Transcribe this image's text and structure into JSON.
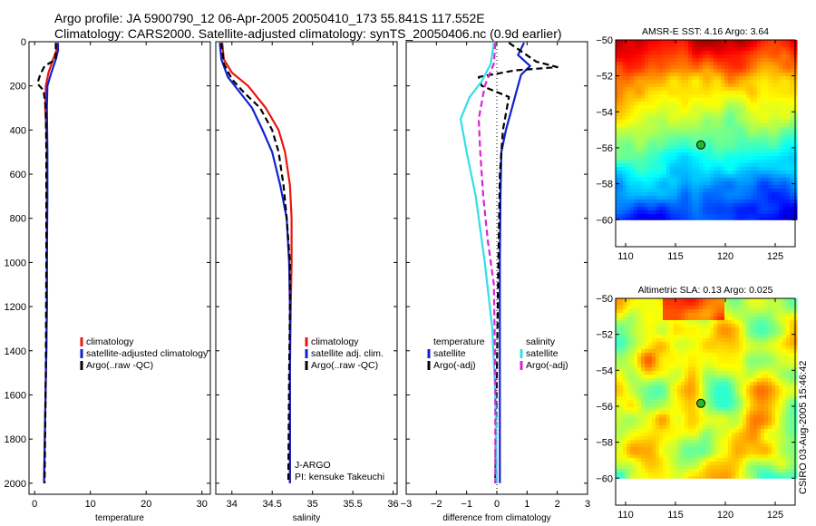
{
  "header": {
    "line1": "Argo profile: JA 5900790_12 06-Apr-2005 20050410_173 55.841S 117.552E",
    "line2": "Climatology: CARS2000. Satellite-adjusted climatology: synTS_20050406.nc (0.9d earlier)"
  },
  "credit": "CSIRO 03-Aug-2005 15:46:42",
  "colors": {
    "red": "#e8180f",
    "blue": "#1020d0",
    "black": "#000000",
    "cyan": "#30e0e8",
    "magenta": "#e020d8"
  },
  "chart_data": [
    {
      "type": "line",
      "id": "temp",
      "xlabel": "temperature",
      "xlim": [
        -1,
        31.5
      ],
      "ylim": [
        0,
        2050
      ],
      "xticks": [
        0,
        10,
        20,
        30
      ],
      "yticks": [
        0,
        200,
        400,
        600,
        800,
        1000,
        1200,
        1400,
        1600,
        1800,
        2000
      ],
      "y_inverted": true,
      "series": [
        {
          "name": "climatology",
          "color": "#e8180f",
          "dash": false,
          "points": [
            [
              3.9,
              5
            ],
            [
              3.9,
              40
            ],
            [
              3.3,
              80
            ],
            [
              2.5,
              140
            ],
            [
              2.0,
              200
            ],
            [
              1.9,
              300
            ],
            [
              2.1,
              400
            ],
            [
              2.2,
              500
            ],
            [
              2.2,
              700
            ],
            [
              2.2,
              1000
            ],
            [
              2.2,
              1200
            ],
            [
              2.1,
              1400
            ],
            [
              1.9,
              1700
            ],
            [
              1.7,
              2000
            ]
          ]
        },
        {
          "name": "satellite-adjusted climatology",
          "color": "#1020d0",
          "dash": false,
          "points": [
            [
              4.2,
              5
            ],
            [
              4.2,
              40
            ],
            [
              3.8,
              80
            ],
            [
              3.0,
              140
            ],
            [
              2.3,
              200
            ],
            [
              2.2,
              300
            ],
            [
              2.3,
              500
            ],
            [
              2.3,
              700
            ],
            [
              2.2,
              1000
            ],
            [
              2.2,
              1200
            ],
            [
              2.1,
              1400
            ],
            [
              1.9,
              1700
            ],
            [
              1.7,
              2000
            ]
          ]
        },
        {
          "name": "Argo(..raw -QC)",
          "color": "#000000",
          "dash": true,
          "points": [
            [
              3.8,
              5
            ],
            [
              3.8,
              80
            ],
            [
              1.8,
              110
            ],
            [
              1.0,
              150
            ],
            [
              0.5,
              190
            ],
            [
              1.6,
              220
            ],
            [
              2.0,
              300
            ],
            [
              2.1,
              500
            ],
            [
              2.1,
              1000
            ],
            [
              2.0,
              1500
            ],
            [
              1.8,
              2000
            ]
          ]
        }
      ],
      "legend": [
        {
          "label": "climatology",
          "color": "#e8180f"
        },
        {
          "label": "satellite-adjusted climatology",
          "color": "#1020d0"
        },
        {
          "label": "Argo(..raw -QC)",
          "color": "#000000"
        }
      ]
    },
    {
      "type": "line",
      "id": "sal",
      "xlabel": "salinity",
      "xlim": [
        33.8,
        36.05
      ],
      "ylim": [
        0,
        2050
      ],
      "xticks": [
        34,
        34.5,
        35,
        35.5,
        36
      ],
      "y_inverted": true,
      "series": [
        {
          "name": "climatology",
          "color": "#e8180f",
          "dash": false,
          "points": [
            [
              33.88,
              5
            ],
            [
              33.9,
              80
            ],
            [
              34.0,
              140
            ],
            [
              34.2,
              200
            ],
            [
              34.42,
              300
            ],
            [
              34.58,
              400
            ],
            [
              34.66,
              500
            ],
            [
              34.72,
              650
            ],
            [
              34.74,
              800
            ],
            [
              34.74,
              1000
            ],
            [
              34.73,
              1200
            ],
            [
              34.72,
              1500
            ],
            [
              34.72,
              2000
            ]
          ]
        },
        {
          "name": "satellite adj. clim.",
          "color": "#1020d0",
          "dash": false,
          "points": [
            [
              33.85,
              5
            ],
            [
              33.87,
              80
            ],
            [
              33.95,
              160
            ],
            [
              34.1,
              230
            ],
            [
              34.25,
              300
            ],
            [
              34.38,
              400
            ],
            [
              34.5,
              500
            ],
            [
              34.6,
              650
            ],
            [
              34.68,
              800
            ],
            [
              34.71,
              1000
            ],
            [
              34.72,
              1200
            ],
            [
              34.72,
              1500
            ],
            [
              34.72,
              2000
            ]
          ]
        },
        {
          "name": "Argo(..raw -QC)",
          "color": "#000000",
          "dash": true,
          "points": [
            [
              33.87,
              5
            ],
            [
              33.9,
              100
            ],
            [
              34.0,
              170
            ],
            [
              34.15,
              230
            ],
            [
              34.35,
              300
            ],
            [
              34.5,
              400
            ],
            [
              34.58,
              500
            ],
            [
              34.64,
              650
            ],
            [
              34.68,
              800
            ],
            [
              34.72,
              1000
            ],
            [
              34.72,
              1200
            ],
            [
              34.71,
              1500
            ],
            [
              34.7,
              2000
            ]
          ]
        }
      ],
      "legend": [
        {
          "label": "climatology",
          "color": "#e8180f"
        },
        {
          "label": "satellite adj. clim.",
          "color": "#1020d0"
        },
        {
          "label": "Argo(..raw -QC)",
          "color": "#000000"
        }
      ],
      "annotations": [
        "J-ARGO",
        "PI: kensuke Takeuchi"
      ]
    },
    {
      "type": "line",
      "id": "diff",
      "xlabel": "difference from climatology",
      "xlim": [
        -3,
        3
      ],
      "ylim": [
        0,
        2050
      ],
      "xticks": [
        -3,
        -2,
        -1,
        0,
        1,
        2,
        3
      ],
      "y_inverted": true,
      "series": [
        {
          "name": "temperature satellite",
          "color": "#1020d0",
          "dash": false,
          "points": [
            [
              0.9,
              5
            ],
            [
              0.7,
              60
            ],
            [
              1.1,
              110
            ],
            [
              0.8,
              150
            ],
            [
              0.7,
              200
            ],
            [
              0.5,
              300
            ],
            [
              0.3,
              400
            ],
            [
              0.15,
              500
            ],
            [
              0.12,
              700
            ],
            [
              0.1,
              1000
            ],
            [
              0.1,
              1500
            ],
            [
              0.1,
              2000
            ]
          ]
        },
        {
          "name": "temperature Argo(-adj)",
          "color": "#000000",
          "dash": true,
          "points": [
            [
              0.4,
              5
            ],
            [
              1.3,
              90
            ],
            [
              2.0,
              115
            ],
            [
              0.6,
              130
            ],
            [
              -0.6,
              160
            ],
            [
              -0.5,
              200
            ],
            [
              0.4,
              250
            ],
            [
              0.2,
              400
            ],
            [
              0.1,
              600
            ],
            [
              0.05,
              1000
            ],
            [
              0.0,
              1500
            ],
            [
              -0.05,
              2000
            ]
          ]
        },
        {
          "name": "salinity satellite",
          "color": "#30e0e8",
          "dash": false,
          "points": [
            [
              -0.1,
              5
            ],
            [
              -0.2,
              100
            ],
            [
              -0.5,
              180
            ],
            [
              -0.9,
              250
            ],
            [
              -1.2,
              350
            ],
            [
              -1.0,
              500
            ],
            [
              -0.7,
              700
            ],
            [
              -0.4,
              1000
            ],
            [
              -0.15,
              1300
            ],
            [
              -0.05,
              1600
            ],
            [
              0.0,
              2000
            ]
          ]
        },
        {
          "name": "salinity Argo(-adj)",
          "color": "#e020d8",
          "dash": true,
          "points": [
            [
              -0.05,
              5
            ],
            [
              -0.1,
              100
            ],
            [
              -0.4,
              200
            ],
            [
              -0.6,
              350
            ],
            [
              -0.55,
              500
            ],
            [
              -0.45,
              700
            ],
            [
              -0.3,
              900
            ],
            [
              -0.1,
              1100
            ],
            [
              -0.05,
              1500
            ],
            [
              -0.05,
              2000
            ]
          ]
        }
      ],
      "legend": [
        {
          "label": "temperature",
          "color": ""
        },
        {
          "label": "satellite",
          "color": "#1020d0"
        },
        {
          "label": "Argo(-adj)",
          "color": "#000000"
        }
      ],
      "legend2": [
        {
          "label": "salinity",
          "color": ""
        },
        {
          "label": "satellite",
          "color": "#30e0e8"
        },
        {
          "label": "Argo(-adj)",
          "color": "#e020d8"
        }
      ]
    },
    {
      "type": "heatmap",
      "id": "sst",
      "title": "AMSR-E SST: 4.16 Argo: 3.64",
      "xlim": [
        109,
        127
      ],
      "ylim": [
        -61.5,
        -50
      ],
      "data_ylim": [
        -60,
        -50
      ],
      "xticks": [
        110,
        115,
        120,
        125
      ],
      "yticks": [
        -50,
        -52,
        -54,
        -56,
        -58,
        -60
      ],
      "marker": [
        117.55,
        -55.84
      ]
    },
    {
      "type": "heatmap",
      "id": "sla",
      "title": "Altimetric SLA: 0.13 Argo: 0.025",
      "xlim": [
        109,
        127
      ],
      "ylim": [
        -61.5,
        -50
      ],
      "data_ylim": [
        -60,
        -50
      ],
      "xticks": [
        110,
        115,
        120,
        125
      ],
      "yticks": [
        -50,
        -52,
        -54,
        -56,
        -58,
        -60
      ],
      "marker": [
        117.55,
        -55.84
      ]
    }
  ]
}
